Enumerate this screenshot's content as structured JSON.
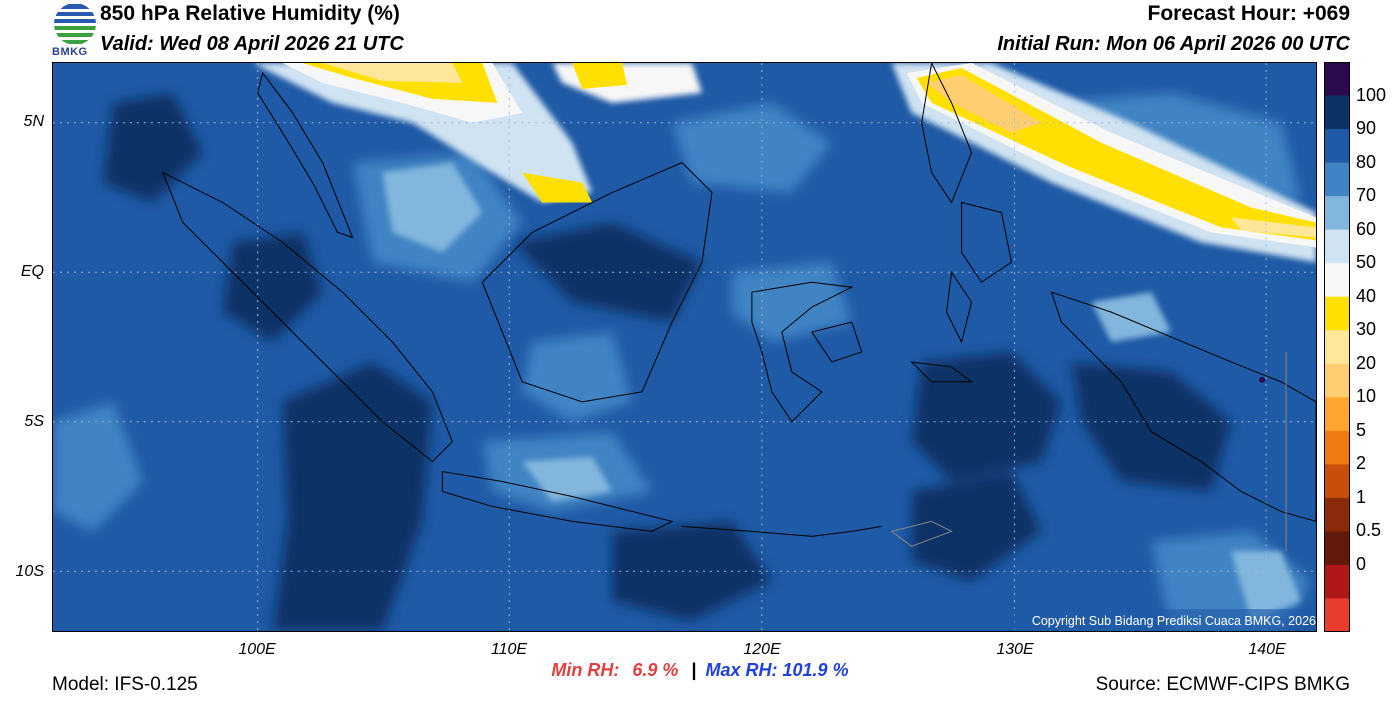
{
  "header": {
    "title": "850 hPa Relative Humidity (%)",
    "valid": "Valid: Wed 08 April 2026 21 UTC",
    "forecast_hour": "Forecast Hour: +069",
    "initial_run": "Initial Run: Mon 06 April 2026 00 UTC",
    "logo_text": "BMKG"
  },
  "map": {
    "lat_labels": [
      "5N",
      "EQ",
      "5S",
      "10S"
    ],
    "lon_labels": [
      "100E",
      "110E",
      "120E",
      "130E",
      "140E"
    ],
    "copyright": "Copyright Sub Bidang Prediksi Cuaca BMKG, 2026"
  },
  "colorbar": {
    "labels": [
      "100",
      "90",
      "80",
      "70",
      "60",
      "50",
      "40",
      "30",
      "20",
      "10",
      "5",
      "2",
      "1",
      "0.5",
      "0"
    ],
    "colors": [
      "#2b0a4d",
      "#0d3366",
      "#1f5aa6",
      "#3f84c4",
      "#82b6dd",
      "#cfe3f2",
      "#f7f7f7",
      "#ffe000",
      "#ffe79a",
      "#ffce70",
      "#ffa530",
      "#f07a10",
      "#c84e0a",
      "#8a2c0a",
      "#641a0a",
      "#b01818",
      "#e83c2c"
    ]
  },
  "stats": {
    "min_label": "Min RH:",
    "min_value": "6.9 %",
    "separator": "|",
    "max_label": "Max RH: 101.9 %"
  },
  "footer": {
    "model": "Model: IFS-0.125",
    "source": "Source: ECMWF-CIPS BMKG"
  }
}
